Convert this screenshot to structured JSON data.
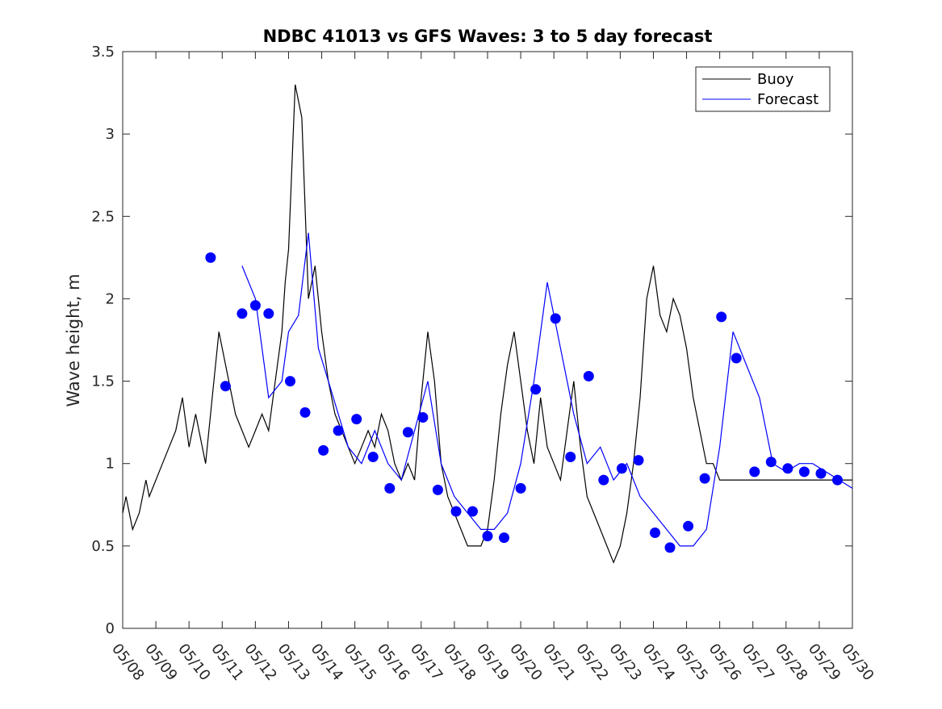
{
  "chart_data": {
    "type": "line",
    "title": "NDBC 41013 vs GFS Waves: 3 to 5 day forecast",
    "xlabel": "",
    "ylabel": "Wave height, m",
    "xlim": [
      "05/08",
      "05/30"
    ],
    "ylim": [
      0,
      3.5
    ],
    "x_tick_labels": [
      "05/08",
      "05/09",
      "05/10",
      "05/11",
      "05/12",
      "05/13",
      "05/14",
      "05/15",
      "05/16",
      "05/17",
      "05/18",
      "05/19",
      "05/20",
      "05/21",
      "05/22",
      "05/23",
      "05/24",
      "05/25",
      "05/26",
      "05/27",
      "05/28",
      "05/29",
      "05/30"
    ],
    "y_tick_values": [
      0,
      0.5,
      1,
      1.5,
      2,
      2.5,
      3,
      3.5
    ],
    "y_tick_labels": [
      "0",
      "0.5",
      "1",
      "1.5",
      "2",
      "2.5",
      "3",
      "3.5"
    ],
    "grid": false,
    "legend_position": "top-right",
    "colors": {
      "buoy": "#000000",
      "forecast": "#0000ff"
    },
    "series": [
      {
        "name": "Buoy",
        "x_unit": "days since 05/08",
        "x": [
          0,
          0.1,
          0.2,
          0.3,
          0.5,
          0.7,
          0.8,
          1.0,
          1.2,
          1.4,
          1.6,
          1.8,
          2.0,
          2.2,
          2.4,
          2.5,
          2.7,
          2.9,
          3.0,
          3.2,
          3.4,
          3.6,
          3.8,
          4.0,
          4.2,
          4.4,
          4.6,
          4.8,
          4.9,
          5.0,
          5.2,
          5.4,
          5.6,
          5.8,
          6.0,
          6.2,
          6.4,
          6.6,
          6.8,
          7.0,
          7.2,
          7.4,
          7.6,
          7.8,
          8.0,
          8.2,
          8.4,
          8.6,
          8.8,
          9.0,
          9.2,
          9.4,
          9.6,
          9.8,
          10.0,
          10.2,
          10.4,
          10.6,
          10.8,
          11.0,
          11.2,
          11.4,
          11.6,
          11.8,
          12.0,
          12.2,
          12.4,
          12.6,
          12.8,
          13.0,
          13.2,
          13.4,
          13.6,
          13.8,
          14.0,
          14.2,
          14.4,
          14.6,
          14.8,
          15.0,
          15.2,
          15.4,
          15.6,
          15.8,
          16.0,
          16.2,
          16.4,
          16.6,
          16.8,
          17.0,
          17.2,
          17.4,
          17.6,
          17.8,
          18.0,
          18.2,
          18.4,
          18.6,
          18.8,
          19.0,
          19.2,
          19.4,
          19.6,
          19.8,
          20.0,
          20.2,
          20.4,
          20.6,
          20.8,
          21.0,
          21.2,
          21.4,
          21.6,
          21.8,
          22.0
        ],
        "y": [
          0.7,
          0.8,
          0.7,
          0.6,
          0.7,
          0.9,
          0.8,
          0.9,
          1.0,
          1.1,
          1.2,
          1.4,
          1.1,
          1.3,
          1.1,
          1.0,
          1.4,
          1.8,
          1.7,
          1.5,
          1.3,
          1.2,
          1.1,
          1.2,
          1.3,
          1.2,
          1.5,
          1.8,
          2.1,
          2.3,
          3.3,
          3.1,
          2.0,
          2.2,
          1.8,
          1.5,
          1.3,
          1.2,
          1.1,
          1.0,
          1.1,
          1.2,
          1.1,
          1.3,
          1.2,
          1.0,
          0.9,
          1.0,
          0.9,
          1.4,
          1.8,
          1.5,
          1.0,
          0.8,
          0.7,
          0.6,
          0.5,
          0.5,
          0.5,
          0.6,
          0.9,
          1.3,
          1.6,
          1.8,
          1.5,
          1.2,
          1.0,
          1.4,
          1.1,
          1.0,
          0.9,
          1.2,
          1.5,
          1.1,
          0.8,
          0.7,
          0.6,
          0.5,
          0.4,
          0.5,
          0.7,
          1.0,
          1.4,
          2.0,
          2.2,
          1.9,
          1.8,
          2.0,
          1.9,
          1.7,
          1.4,
          1.2,
          1.0,
          1.0,
          0.9,
          0.9,
          0.9,
          0.9,
          0.9,
          0.9,
          0.9,
          0.9,
          0.9,
          0.9,
          0.9,
          0.9,
          0.9,
          0.9,
          0.9,
          0.9,
          0.9,
          0.9,
          0.9,
          0.9,
          0.9
        ]
      },
      {
        "name": "Forecast",
        "x_unit": "days since 05/08",
        "x": [
          3.6,
          4.0,
          4.4,
          4.8,
          5.0,
          5.3,
          5.6,
          5.9,
          6.2,
          6.5,
          6.8,
          7.2,
          7.6,
          8.0,
          8.4,
          8.8,
          9.2,
          9.6,
          10.0,
          10.4,
          10.8,
          11.2,
          11.6,
          12.0,
          12.4,
          12.8,
          13.2,
          13.6,
          14.0,
          14.4,
          14.8,
          15.2,
          15.6,
          16.0,
          16.4,
          16.8,
          17.2,
          17.6,
          18.0,
          18.4,
          18.8,
          19.2,
          19.6,
          20.0,
          20.4,
          20.8,
          21.2,
          21.6,
          22.0
        ],
        "y": [
          2.2,
          2.0,
          1.4,
          1.5,
          1.8,
          1.9,
          2.4,
          1.7,
          1.5,
          1.3,
          1.1,
          1.0,
          1.2,
          1.0,
          0.9,
          1.2,
          1.5,
          1.0,
          0.8,
          0.7,
          0.6,
          0.6,
          0.7,
          1.0,
          1.5,
          2.1,
          1.7,
          1.3,
          1.0,
          1.1,
          0.9,
          1.0,
          0.8,
          0.7,
          0.6,
          0.5,
          0.5,
          0.6,
          1.1,
          1.8,
          1.6,
          1.4,
          1.0,
          0.95,
          1.0,
          1.0,
          0.95,
          0.9,
          0.85
        ]
      }
    ],
    "markers": {
      "series": "Forecast",
      "x_unit": "days since 05/08",
      "x": [
        2.65,
        3.1,
        3.6,
        4.0,
        4.4,
        5.05,
        5.5,
        6.05,
        6.5,
        7.05,
        7.55,
        8.05,
        8.6,
        9.05,
        9.5,
        10.05,
        10.55,
        11.0,
        11.5,
        12.0,
        12.45,
        13.05,
        13.5,
        14.05,
        14.5,
        15.05,
        15.55,
        16.05,
        16.5,
        17.05,
        17.55,
        18.05,
        18.5,
        19.05,
        19.55,
        20.05,
        20.55,
        21.05,
        21.55
      ],
      "y": [
        2.25,
        1.47,
        1.91,
        1.96,
        1.91,
        1.5,
        1.31,
        1.08,
        1.2,
        1.27,
        1.04,
        0.85,
        1.19,
        1.28,
        0.84,
        0.71,
        0.71,
        0.56,
        0.55,
        0.85,
        1.45,
        1.88,
        1.04,
        1.53,
        0.9,
        0.97,
        1.02,
        0.58,
        0.49,
        0.62,
        0.91,
        1.89,
        1.64,
        0.95,
        1.01,
        0.97,
        0.95,
        0.94,
        0.9
      ]
    }
  }
}
